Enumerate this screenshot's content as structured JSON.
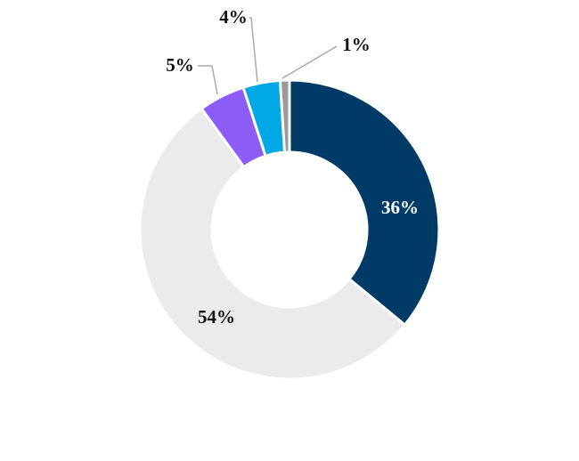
{
  "chart_data": {
    "type": "donut",
    "values": [
      36,
      54,
      5,
      4,
      1
    ],
    "value_labels": [
      "36%",
      "54%",
      "5%",
      "4%",
      "1%"
    ],
    "colors": [
      "#003b68",
      "#ebebeb",
      "#8b5cf6",
      "#00a9e6",
      "#9a9a9a"
    ]
  }
}
